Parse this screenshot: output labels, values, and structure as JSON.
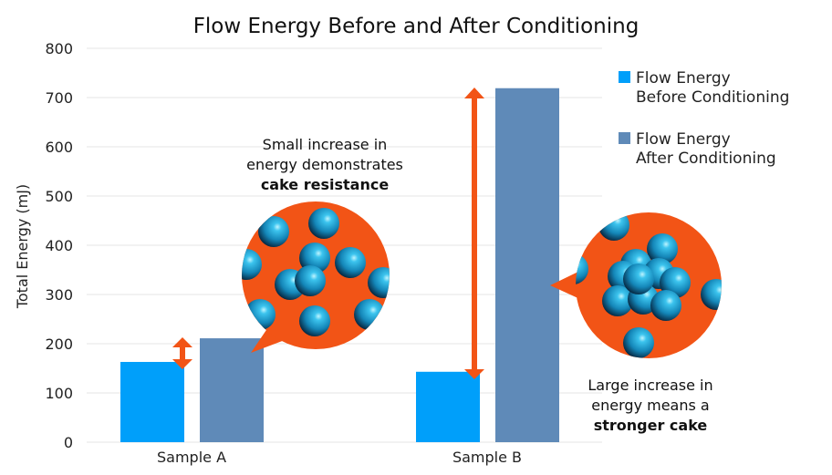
{
  "chart_data": {
    "type": "bar",
    "title": "Flow Energy Before and After Conditioning",
    "ylabel": "Total Energy (mJ)",
    "xlabel": "",
    "ylim": [
      0,
      800
    ],
    "yticks": [
      0,
      100,
      200,
      300,
      400,
      500,
      600,
      700,
      800
    ],
    "grid": true,
    "legend_placement": "right",
    "categories": [
      "Sample A",
      "Sample B"
    ],
    "series": [
      {
        "name": "Flow Energy Before Conditioning",
        "name_lines": [
          "Flow Energy",
          "Before Conditioning"
        ],
        "color": "#009ffa",
        "values": [
          163,
          143
        ]
      },
      {
        "name": "Flow Energy After Conditioning",
        "name_lines": [
          "Flow Energy",
          "After Conditioning"
        ],
        "color": "#5f8ab8",
        "values": [
          211,
          719
        ]
      }
    ],
    "annotations": [
      {
        "lines": [
          "Small increase in",
          "energy demonstrates"
        ],
        "bold": "cake resistance"
      },
      {
        "lines": [
          "Large increase in",
          "energy means a"
        ],
        "bold": "stronger cake"
      }
    ],
    "accent_color": "#f25416"
  }
}
